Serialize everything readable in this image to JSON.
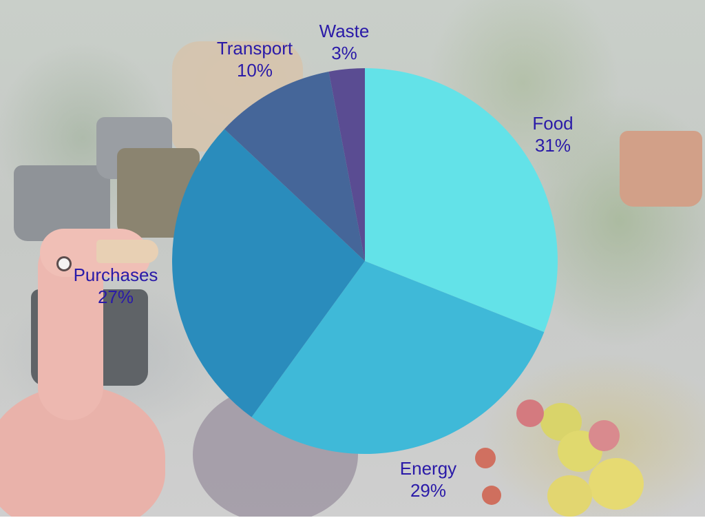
{
  "chart_data": {
    "type": "pie",
    "title": "",
    "categories": [
      "Food",
      "Energy",
      "Purchases",
      "Transport",
      "Waste"
    ],
    "values": [
      31,
      29,
      27,
      10,
      3
    ],
    "value_suffix": "%",
    "colors": [
      "#63e2e8",
      "#3fb9d8",
      "#2a8cbc",
      "#456699",
      "#5a4c92"
    ],
    "start_angle_deg": 0,
    "direction": "clockwise",
    "legend": "none",
    "label_color": "#2a1aa8"
  }
}
